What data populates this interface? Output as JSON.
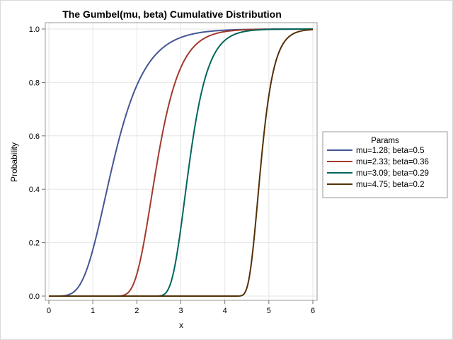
{
  "chart_data": {
    "type": "line",
    "title": "The Gumbel(mu, beta) Cumulative Distribution",
    "xlabel": "x",
    "ylabel": "Probability",
    "xlim": [
      0,
      6
    ],
    "ylim": [
      0,
      1
    ],
    "x_ticks": [
      "0",
      "1",
      "2",
      "3",
      "4",
      "5",
      "6"
    ],
    "y_ticks": [
      "0.0",
      "0.2",
      "0.4",
      "0.6",
      "0.8",
      "1.0"
    ],
    "grid": true,
    "legend": {
      "title": "Params",
      "placement": "right"
    },
    "x_range": [
      0,
      6
    ],
    "series": [
      {
        "name": "mu=1.28; beta=0.5",
        "mu": 1.28,
        "beta": 0.5,
        "color": "#445694"
      },
      {
        "name": "mu=2.33; beta=0.36",
        "mu": 2.33,
        "beta": 0.36,
        "color": "#A23A2E"
      },
      {
        "name": "mu=3.09; beta=0.29",
        "mu": 3.09,
        "beta": 0.29,
        "color": "#01665E"
      },
      {
        "name": "mu=4.75; beta=0.2",
        "mu": 4.75,
        "beta": 0.2,
        "color": "#543005"
      }
    ]
  }
}
